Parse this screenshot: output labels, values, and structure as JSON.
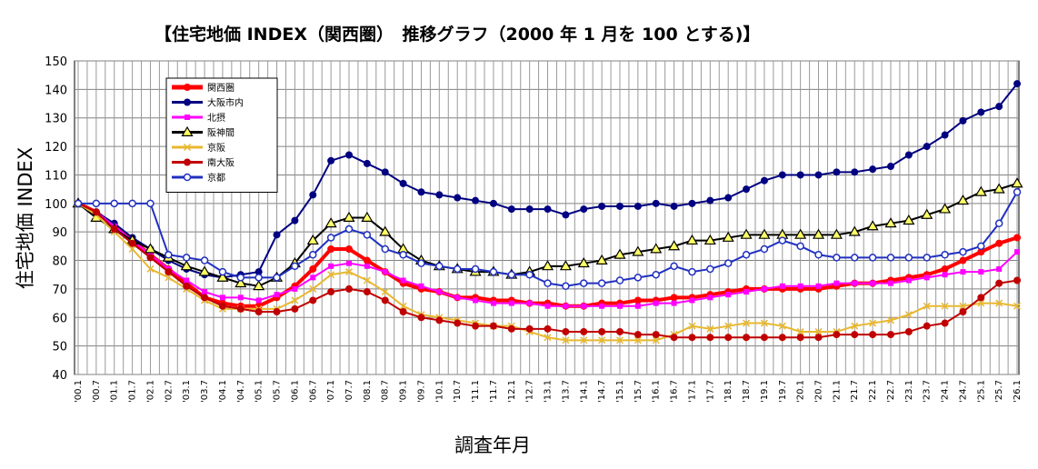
{
  "chart_data": {
    "type": "line",
    "title": "【住宅地価 INDEX（関西圏）　推移グラフ（2000 年 1 月を 100 とする)】",
    "xlabel": "調査年月",
    "ylabel": "住宅地価 INDEX",
    "ylim": [
      40,
      150
    ],
    "yticks": [
      40,
      50,
      60,
      70,
      80,
      90,
      100,
      110,
      120,
      130,
      140,
      150
    ],
    "grid": true,
    "legend_position": "top-left",
    "x": [
      "'00.1",
      "'00.7",
      "'01.1",
      "'01.7",
      "'02.1",
      "'02.7",
      "'03.1",
      "'03.7",
      "'04.1",
      "'04.7",
      "'05.1",
      "'05.7",
      "'06.1",
      "'06.7",
      "'07.1",
      "'07.7",
      "'08.1",
      "'08.7",
      "'09.1",
      "'09.7",
      "'10.1",
      "'10.7",
      "'11.1",
      "'11.7",
      "'12.1",
      "'12.7",
      "'13.1",
      "'13.7",
      "'14.1",
      "'14.7",
      "'15.1",
      "'15.7",
      "'16.1",
      "'16.7",
      "'17.1",
      "'17.7",
      "'18.1",
      "'18.7",
      "'19.1",
      "'19.7",
      "'20.1",
      "'20.7",
      "'21.1",
      "'21.7",
      "'22.1",
      "'22.7",
      "'23.1",
      "'23.7",
      "'24.1",
      "'24.7",
      "'25.1",
      "'25.7",
      "'26.1"
    ],
    "series": [
      {
        "name": "関西圏",
        "color": "#ff0000",
        "marker": "circle",
        "width": 4,
        "values": [
          100,
          97,
          92,
          87,
          82,
          77,
          72,
          67,
          65,
          64,
          64,
          67,
          71,
          77,
          84,
          84,
          80,
          76,
          72,
          70,
          69,
          67,
          67,
          66,
          66,
          65,
          65,
          64,
          64,
          65,
          65,
          66,
          66,
          67,
          67,
          68,
          69,
          70,
          70,
          70,
          70,
          70,
          71,
          72,
          72,
          73,
          74,
          75,
          77,
          80,
          83,
          86,
          88
        ]
      },
      {
        "name": "大阪市内",
        "color": "#000080",
        "marker": "circle",
        "width": 2,
        "values": [
          100,
          97,
          93,
          88,
          84,
          80,
          77,
          75,
          74,
          75,
          76,
          89,
          94,
          103,
          115,
          117,
          114,
          111,
          107,
          104,
          103,
          102,
          101,
          100,
          98,
          98,
          98,
          96,
          98,
          99,
          99,
          99,
          100,
          99,
          100,
          101,
          102,
          105,
          108,
          110,
          110,
          110,
          111,
          111,
          112,
          113,
          117,
          120,
          124,
          129,
          132,
          134,
          142
        ]
      },
      {
        "name": "北摂",
        "color": "#ff00ff",
        "marker": "square",
        "width": 2,
        "values": [
          100,
          97,
          92,
          87,
          82,
          77,
          73,
          69,
          67,
          67,
          66,
          68,
          70,
          74,
          78,
          79,
          78,
          76,
          73,
          71,
          69,
          67,
          66,
          65,
          65,
          65,
          64,
          64,
          64,
          64,
          64,
          64,
          65,
          65,
          66,
          67,
          68,
          69,
          70,
          71,
          71,
          71,
          72,
          72,
          72,
          72,
          73,
          74,
          75,
          76,
          76,
          77,
          83
        ]
      },
      {
        "name": "阪神間",
        "color": "#000000",
        "fill": "#ffff66",
        "marker": "triangle",
        "width": 2,
        "values": [
          100,
          95,
          91,
          87,
          84,
          81,
          78,
          76,
          74,
          72,
          71,
          74,
          79,
          87,
          93,
          95,
          95,
          90,
          84,
          80,
          78,
          77,
          76,
          76,
          75,
          76,
          78,
          78,
          79,
          80,
          82,
          83,
          84,
          85,
          87,
          87,
          88,
          89,
          89,
          89,
          89,
          89,
          89,
          90,
          92,
          93,
          94,
          96,
          98,
          101,
          104,
          105,
          107
        ]
      },
      {
        "name": "京阪",
        "color": "#e8b830",
        "marker": "x",
        "width": 2,
        "values": [
          100,
          96,
          90,
          84,
          77,
          74,
          70,
          66,
          63,
          63,
          63,
          63,
          66,
          70,
          75,
          76,
          73,
          69,
          64,
          61,
          60,
          59,
          58,
          57,
          57,
          55,
          53,
          52,
          52,
          52,
          52,
          52,
          52,
          54,
          57,
          56,
          57,
          58,
          58,
          57,
          55,
          55,
          55,
          57,
          58,
          59,
          61,
          64,
          64,
          64,
          65,
          65,
          64
        ]
      },
      {
        "name": "南大阪",
        "color": "#c00000",
        "marker": "circle",
        "width": 2,
        "values": [
          100,
          97,
          91,
          86,
          81,
          76,
          71,
          67,
          64,
          63,
          62,
          62,
          63,
          66,
          69,
          70,
          69,
          66,
          62,
          60,
          59,
          58,
          57,
          57,
          56,
          56,
          56,
          55,
          55,
          55,
          55,
          54,
          54,
          53,
          53,
          53,
          53,
          53,
          53,
          53,
          53,
          53,
          54,
          54,
          54,
          54,
          55,
          57,
          58,
          62,
          67,
          72,
          73
        ]
      },
      {
        "name": "京都",
        "color": "#2030c0",
        "marker": "circle-open",
        "width": 2,
        "values": [
          100,
          100,
          100,
          100,
          100,
          82,
          81,
          80,
          76,
          74,
          74,
          74,
          78,
          82,
          88,
          91,
          89,
          84,
          82,
          79,
          78,
          77,
          77,
          76,
          75,
          75,
          72,
          71,
          72,
          72,
          73,
          74,
          75,
          78,
          76,
          77,
          79,
          82,
          84,
          87,
          85,
          82,
          81,
          81,
          81,
          81,
          81,
          81,
          82,
          83,
          85,
          93,
          104
        ]
      }
    ]
  }
}
